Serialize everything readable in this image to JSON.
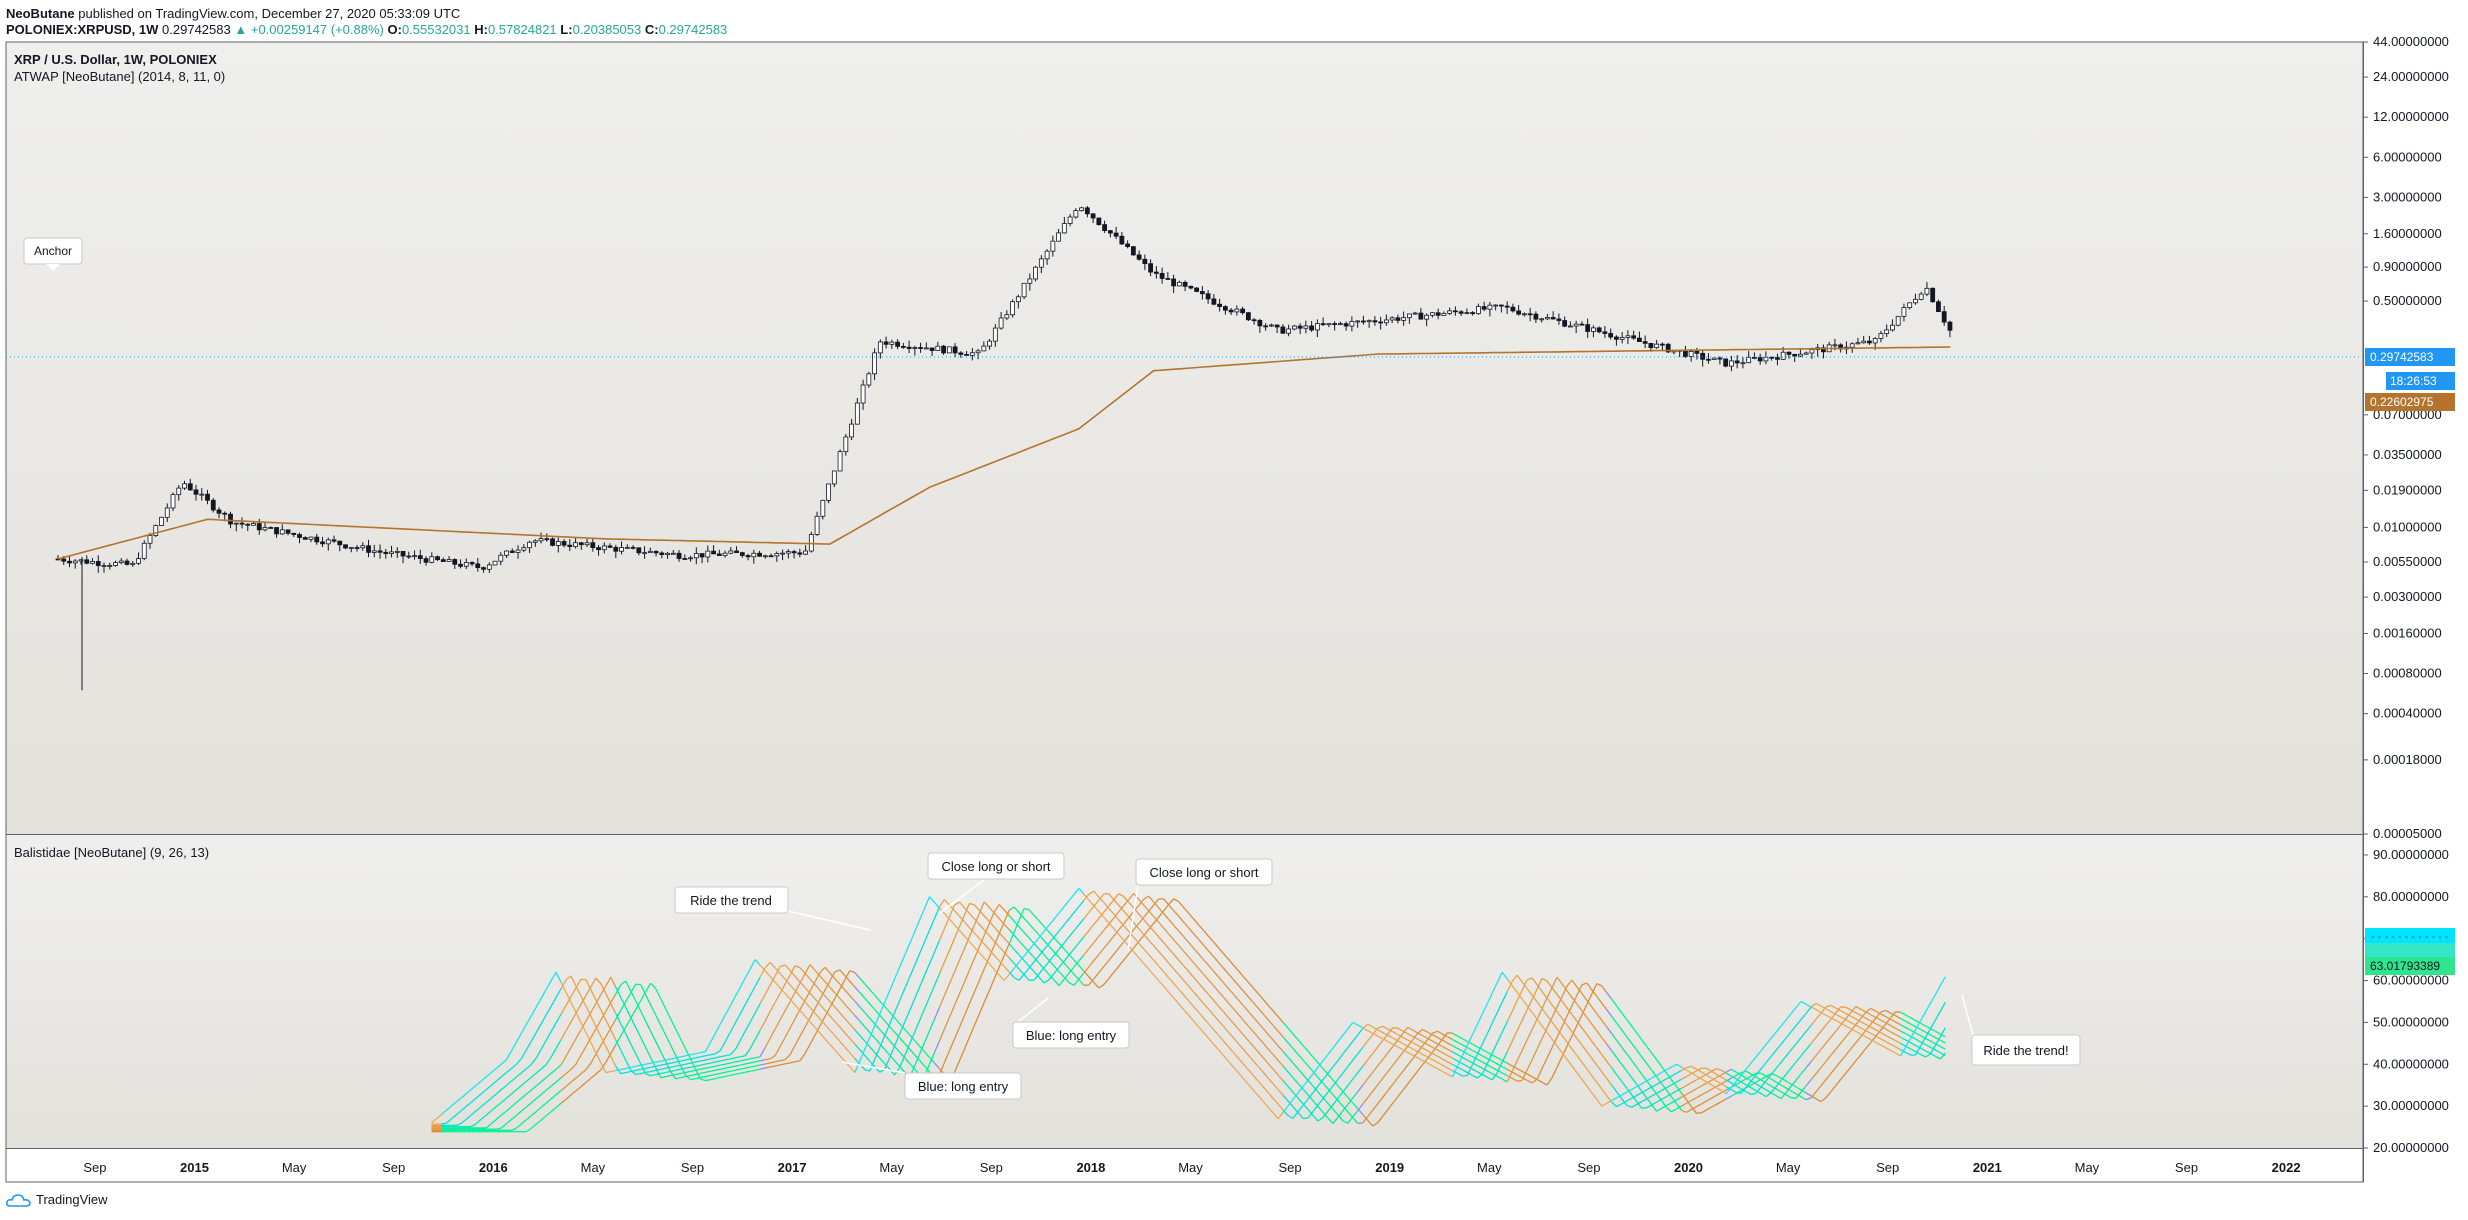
{
  "header": {
    "author": "NeoButane",
    "published_text": "published on TradingView.com, December 27, 2020 05:33:09 UTC",
    "symbol": "POLONIEX:XRPUSD, 1W",
    "last": "0.29742583",
    "change": "+0.00259147 (+0.88%)",
    "open_label": "O:",
    "open": "0.55532031",
    "high_label": "H:",
    "high": "0.57824821",
    "low_label": "L:",
    "low": "0.20385053",
    "close_label": "C:",
    "close": "0.29742583"
  },
  "main_pane": {
    "title": "XRP / U.S. Dollar, 1W, POLONIEX",
    "indicator": "ATWAP [NeoButane] (2014, 8, 11, 0)",
    "anchor_label": "Anchor",
    "price_ticks": [
      "44.00000000",
      "24.00000000",
      "12.00000000",
      "6.00000000",
      "3.00000000",
      "1.60000000",
      "0.90000000",
      "0.50000000",
      "0.12000000",
      "0.07000000",
      "0.03500000",
      "0.01900000",
      "0.01000000",
      "0.00550000",
      "0.00300000",
      "0.00160000",
      "0.00080000",
      "0.00040000",
      "0.00018000",
      "0.00005000"
    ],
    "last_price_badge": "0.29742583",
    "countdown_badge": "18:26:53",
    "atwap_badge": "0.22602975",
    "colors": {
      "up_badge": "#2196f3",
      "atwap": "#b5742e",
      "candle": "#131722",
      "grid_bg_top": "#efefee",
      "grid_bg_bottom": "#e3e1db"
    }
  },
  "oscillator_pane": {
    "title": "Balistidae [NeoButane] (9, 26, 13)",
    "ticks": [
      "90.00000000",
      "80.00000000",
      "70.00000000",
      "60.00000000",
      "50.00000000",
      "40.00000000",
      "30.00000000",
      "20.00000000"
    ],
    "value_badge": "63.01793389",
    "annotations": [
      {
        "text": "Ride the trend"
      },
      {
        "text": "Close long or short"
      },
      {
        "text": "Close long or short"
      },
      {
        "text": "Blue: long entry"
      },
      {
        "text": "Blue: long entry"
      },
      {
        "text": "Ride the trend!"
      }
    ]
  },
  "time_axis": [
    "Sep",
    "2015",
    "May",
    "Sep",
    "2016",
    "May",
    "Sep",
    "2017",
    "May",
    "Sep",
    "2018",
    "May",
    "Sep",
    "2019",
    "May",
    "Sep",
    "2020",
    "May",
    "Sep",
    "2021",
    "May",
    "Sep",
    "2022"
  ],
  "footer": {
    "brand": "TradingView"
  },
  "chart_data": {
    "type": "candlestick",
    "title": "XRP / U.S. Dollar, 1W, POLONIEX",
    "scale": "log",
    "x_range": [
      "2014-08",
      "2022-12"
    ],
    "ylim": [
      5e-05,
      44
    ],
    "price_path": [
      {
        "date": "2014-08",
        "price": 0.0058
      },
      {
        "date": "2014-11",
        "price": 0.0052
      },
      {
        "date": "2015-01",
        "price": 0.022
      },
      {
        "date": "2015-03",
        "price": 0.011
      },
      {
        "date": "2015-09",
        "price": 0.0065
      },
      {
        "date": "2016-01",
        "price": 0.005
      },
      {
        "date": "2016-03",
        "price": 0.008
      },
      {
        "date": "2016-09",
        "price": 0.0062
      },
      {
        "date": "2017-02",
        "price": 0.0065
      },
      {
        "date": "2017-05",
        "price": 0.25
      },
      {
        "date": "2017-09",
        "price": 0.2
      },
      {
        "date": "2018-01",
        "price": 2.7
      },
      {
        "date": "2018-04",
        "price": 0.8
      },
      {
        "date": "2018-09",
        "price": 0.3
      },
      {
        "date": "2019-06",
        "price": 0.45
      },
      {
        "date": "2020-03",
        "price": 0.17
      },
      {
        "date": "2020-09",
        "price": 0.25
      },
      {
        "date": "2020-11",
        "price": 0.65
      },
      {
        "date": "2020-12",
        "price": 0.297
      }
    ],
    "atwap_path": [
      {
        "date": "2014-08",
        "price": 0.0058
      },
      {
        "date": "2015-02",
        "price": 0.0115
      },
      {
        "date": "2016-06",
        "price": 0.0082
      },
      {
        "date": "2017-03",
        "price": 0.0075
      },
      {
        "date": "2017-07",
        "price": 0.02
      },
      {
        "date": "2018-01",
        "price": 0.055
      },
      {
        "date": "2018-04",
        "price": 0.15
      },
      {
        "date": "2019-01",
        "price": 0.2
      },
      {
        "date": "2020-12",
        "price": 0.226
      }
    ],
    "last_price": 0.29742583,
    "atwap_last": 0.22602975,
    "oscillator": {
      "name": "Balistidae [NeoButane] (9, 26, 13)",
      "ylim": [
        20,
        95
      ],
      "last_value": 63.01793389,
      "path": [
        {
          "date": "2015-11",
          "value": 26
        },
        {
          "date": "2016-02",
          "value": 41
        },
        {
          "date": "2016-04",
          "value": 62
        },
        {
          "date": "2016-06",
          "value": 38
        },
        {
          "date": "2016-10",
          "value": 43
        },
        {
          "date": "2016-12",
          "value": 65
        },
        {
          "date": "2017-04",
          "value": 38
        },
        {
          "date": "2017-07",
          "value": 80
        },
        {
          "date": "2017-10",
          "value": 60
        },
        {
          "date": "2018-01",
          "value": 82
        },
        {
          "date": "2018-09",
          "value": 27
        },
        {
          "date": "2018-12",
          "value": 50
        },
        {
          "date": "2019-04",
          "value": 37
        },
        {
          "date": "2019-06",
          "value": 62
        },
        {
          "date": "2019-10",
          "value": 30
        },
        {
          "date": "2020-01",
          "value": 40
        },
        {
          "date": "2020-03",
          "value": 33
        },
        {
          "date": "2020-06",
          "value": 55
        },
        {
          "date": "2020-10",
          "value": 42
        },
        {
          "date": "2020-12",
          "value": 63
        }
      ]
    }
  }
}
